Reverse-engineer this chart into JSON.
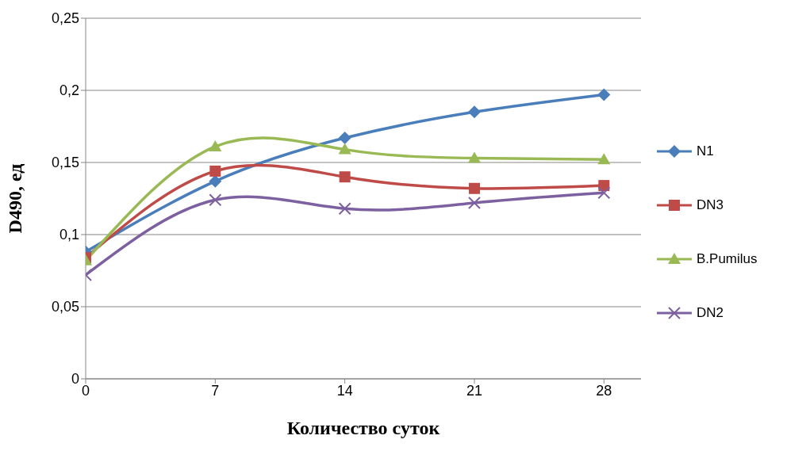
{
  "chart_data": {
    "type": "line",
    "xlabel": "Количество суток",
    "ylabel": "D490, ед",
    "x": [
      0,
      7,
      14,
      21,
      28
    ],
    "xlim": [
      0,
      30
    ],
    "xticks": [
      0,
      7,
      14,
      21,
      28
    ],
    "ylim": [
      0,
      0.25
    ],
    "yticks": [
      {
        "value": 0,
        "label": "0"
      },
      {
        "value": 0.05,
        "label": "0,05"
      },
      {
        "value": 0.1,
        "label": "0,1"
      },
      {
        "value": 0.15,
        "label": "0,15"
      },
      {
        "value": 0.2,
        "label": "0,2"
      },
      {
        "value": 0.25,
        "label": "0,25"
      }
    ],
    "grid": "y",
    "legend": "right",
    "series": [
      {
        "name": "N1",
        "color": "#4a7ebb",
        "marker": "diamond",
        "values": [
          0.088,
          0.137,
          0.167,
          0.185,
          0.197
        ]
      },
      {
        "name": "DN3",
        "color": "#be4b48",
        "marker": "square",
        "values": [
          0.084,
          0.144,
          0.14,
          0.132,
          0.134
        ]
      },
      {
        "name": "B.Pumilus",
        "color": "#98b954",
        "marker": "triangle",
        "values": [
          0.082,
          0.161,
          0.159,
          0.153,
          0.152
        ]
      },
      {
        "name": "DN2",
        "color": "#7d60a0",
        "marker": "cross",
        "values": [
          0.072,
          0.124,
          0.118,
          0.122,
          0.129
        ]
      }
    ]
  }
}
